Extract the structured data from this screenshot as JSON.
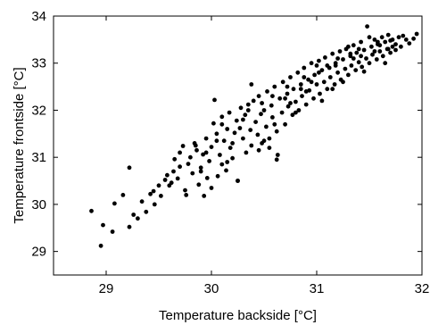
{
  "chart_data": {
    "type": "scatter",
    "title": "",
    "xlabel": "Temperature backside [°C]",
    "ylabel": "Temperature frontside [°C]",
    "xlim": [
      28.5,
      32
    ],
    "ylim": [
      28.5,
      34
    ],
    "xticks": [
      29,
      30,
      31,
      32
    ],
    "yticks": [
      29,
      30,
      31,
      32,
      33,
      34
    ],
    "grid": false,
    "legend": "none",
    "marker_color": "#000000",
    "points": [
      [
        28.86,
        29.86
      ],
      [
        28.95,
        29.12
      ],
      [
        28.97,
        29.56
      ],
      [
        29.06,
        29.42
      ],
      [
        29.08,
        30.02
      ],
      [
        29.16,
        30.2
      ],
      [
        29.22,
        29.52
      ],
      [
        29.22,
        30.78
      ],
      [
        29.26,
        29.78
      ],
      [
        29.3,
        29.7
      ],
      [
        29.34,
        30.06
      ],
      [
        29.38,
        29.84
      ],
      [
        29.42,
        30.22
      ],
      [
        29.45,
        30.28
      ],
      [
        29.46,
        30.0
      ],
      [
        29.5,
        30.4
      ],
      [
        29.52,
        30.18
      ],
      [
        29.56,
        30.52
      ],
      [
        29.58,
        30.62
      ],
      [
        29.62,
        30.46
      ],
      [
        29.64,
        30.7
      ],
      [
        29.65,
        30.96
      ],
      [
        29.68,
        30.55
      ],
      [
        29.7,
        31.1
      ],
      [
        29.73,
        31.24
      ],
      [
        29.75,
        30.3
      ],
      [
        29.76,
        30.2
      ],
      [
        29.78,
        30.86
      ],
      [
        29.8,
        31.0
      ],
      [
        29.82,
        30.66
      ],
      [
        29.84,
        31.3
      ],
      [
        29.86,
        31.15
      ],
      [
        29.88,
        30.42
      ],
      [
        29.9,
        30.78
      ],
      [
        29.92,
        31.06
      ],
      [
        29.93,
        30.18
      ],
      [
        29.95,
        31.4
      ],
      [
        29.96,
        30.56
      ],
      [
        29.98,
        30.92
      ],
      [
        30.0,
        31.22
      ],
      [
        30.0,
        30.35
      ],
      [
        30.02,
        31.72
      ],
      [
        30.03,
        32.22
      ],
      [
        30.05,
        31.5
      ],
      [
        30.06,
        30.6
      ],
      [
        30.08,
        31.05
      ],
      [
        30.1,
        31.86
      ],
      [
        30.1,
        30.85
      ],
      [
        30.12,
        31.35
      ],
      [
        30.14,
        30.72
      ],
      [
        30.15,
        31.6
      ],
      [
        30.17,
        31.95
      ],
      [
        30.18,
        31.2
      ],
      [
        30.2,
        30.98
      ],
      [
        30.22,
        31.52
      ],
      [
        30.24,
        31.78
      ],
      [
        30.25,
        30.5
      ],
      [
        30.27,
        31.62
      ],
      [
        30.28,
        32.05
      ],
      [
        30.3,
        31.4
      ],
      [
        30.32,
        31.9
      ],
      [
        30.33,
        31.1
      ],
      [
        30.35,
        32.12
      ],
      [
        30.37,
        31.58
      ],
      [
        30.38,
        31.25
      ],
      [
        30.4,
        32.2
      ],
      [
        30.42,
        31.75
      ],
      [
        30.44,
        31.48
      ],
      [
        30.45,
        32.3
      ],
      [
        30.47,
        31.92
      ],
      [
        30.48,
        31.3
      ],
      [
        30.5,
        32.0
      ],
      [
        30.52,
        31.65
      ],
      [
        30.53,
        32.4
      ],
      [
        30.55,
        31.2
      ],
      [
        30.57,
        32.1
      ],
      [
        30.58,
        31.85
      ],
      [
        30.6,
        32.5
      ],
      [
        30.62,
        31.55
      ],
      [
        30.63,
        31.05
      ],
      [
        30.65,
        32.25
      ],
      [
        30.67,
        31.95
      ],
      [
        30.68,
        32.6
      ],
      [
        30.7,
        31.7
      ],
      [
        30.72,
        32.35
      ],
      [
        30.73,
        32.08
      ],
      [
        30.75,
        32.7
      ],
      [
        30.77,
        31.9
      ],
      [
        30.78,
        32.45
      ],
      [
        30.8,
        32.18
      ],
      [
        30.82,
        32.8
      ],
      [
        30.83,
        32.0
      ],
      [
        30.85,
        32.55
      ],
      [
        30.86,
        32.3
      ],
      [
        30.88,
        32.9
      ],
      [
        30.9,
        32.12
      ],
      [
        30.92,
        32.65
      ],
      [
        30.93,
        32.42
      ],
      [
        30.95,
        33.0
      ],
      [
        30.97,
        32.25
      ],
      [
        30.98,
        32.75
      ],
      [
        31.0,
        32.55
      ],
      [
        31.02,
        33.05
      ],
      [
        31.03,
        32.35
      ],
      [
        31.05,
        32.85
      ],
      [
        31.07,
        32.6
      ],
      [
        31.08,
        33.12
      ],
      [
        31.1,
        32.45
      ],
      [
        31.12,
        32.9
      ],
      [
        31.13,
        32.7
      ],
      [
        31.15,
        33.2
      ],
      [
        31.17,
        32.55
      ],
      [
        31.18,
        33.0
      ],
      [
        31.2,
        32.8
      ],
      [
        31.22,
        33.25
      ],
      [
        31.23,
        32.65
      ],
      [
        31.25,
        33.08
      ],
      [
        31.27,
        32.88
      ],
      [
        31.28,
        33.3
      ],
      [
        31.3,
        32.75
      ],
      [
        31.32,
        33.15
      ],
      [
        31.33,
        32.95
      ],
      [
        31.35,
        33.38
      ],
      [
        31.37,
        32.85
      ],
      [
        31.38,
        33.22
      ],
      [
        31.4,
        33.02
      ],
      [
        31.42,
        33.45
      ],
      [
        31.43,
        32.92
      ],
      [
        31.45,
        33.28
      ],
      [
        31.47,
        33.1
      ],
      [
        31.48,
        33.78
      ],
      [
        31.5,
        33.0
      ],
      [
        31.52,
        33.35
      ],
      [
        31.53,
        33.18
      ],
      [
        31.55,
        33.5
      ],
      [
        31.57,
        33.08
      ],
      [
        31.58,
        33.4
      ],
      [
        31.6,
        33.25
      ],
      [
        31.62,
        33.55
      ],
      [
        31.63,
        33.15
      ],
      [
        31.65,
        33.45
      ],
      [
        31.67,
        33.3
      ],
      [
        31.68,
        33.6
      ],
      [
        31.7,
        33.22
      ],
      [
        31.72,
        33.5
      ],
      [
        31.75,
        33.4
      ],
      [
        31.78,
        33.55
      ],
      [
        31.8,
        33.35
      ],
      [
        31.85,
        33.5
      ],
      [
        31.88,
        33.42
      ],
      [
        31.92,
        33.52
      ],
      [
        31.95,
        33.62
      ],
      [
        30.15,
        30.9
      ],
      [
        30.25,
        30.5
      ],
      [
        30.45,
        31.15
      ],
      [
        30.55,
        31.4
      ],
      [
        30.62,
        30.95
      ],
      [
        30.38,
        32.55
      ],
      [
        30.7,
        32.25
      ],
      [
        30.8,
        31.95
      ],
      [
        30.9,
        32.4
      ],
      [
        31.0,
        32.95
      ],
      [
        31.05,
        32.2
      ],
      [
        31.15,
        32.45
      ],
      [
        31.25,
        32.6
      ],
      [
        31.35,
        33.1
      ],
      [
        31.45,
        32.82
      ],
      [
        31.55,
        33.25
      ],
      [
        31.65,
        33.0
      ],
      [
        31.72,
        33.35
      ],
      [
        29.9,
        30.7
      ],
      [
        30.05,
        31.35
      ],
      [
        30.2,
        31.3
      ],
      [
        30.3,
        31.8
      ],
      [
        30.5,
        31.35
      ],
      [
        30.6,
        31.7
      ],
      [
        30.75,
        32.15
      ],
      [
        30.85,
        32.45
      ],
      [
        30.95,
        32.6
      ],
      [
        31.1,
        32.95
      ],
      [
        31.2,
        33.1
      ],
      [
        31.3,
        33.35
      ],
      [
        31.4,
        33.3
      ],
      [
        31.5,
        33.55
      ],
      [
        31.6,
        33.38
      ],
      [
        31.7,
        33.48
      ],
      [
        31.75,
        33.28
      ],
      [
        29.6,
        30.4
      ],
      [
        29.7,
        30.8
      ],
      [
        29.85,
        31.25
      ],
      [
        29.95,
        31.1
      ],
      [
        30.1,
        31.7
      ],
      [
        30.35,
        32.0
      ],
      [
        30.48,
        32.15
      ],
      [
        30.58,
        32.3
      ],
      [
        30.72,
        32.5
      ],
      [
        30.88,
        32.7
      ],
      [
        31.02,
        32.8
      ],
      [
        31.18,
        32.95
      ],
      [
        31.32,
        33.2
      ],
      [
        31.42,
        33.15
      ],
      [
        31.58,
        33.45
      ],
      [
        31.68,
        33.3
      ],
      [
        31.82,
        33.58
      ]
    ]
  }
}
